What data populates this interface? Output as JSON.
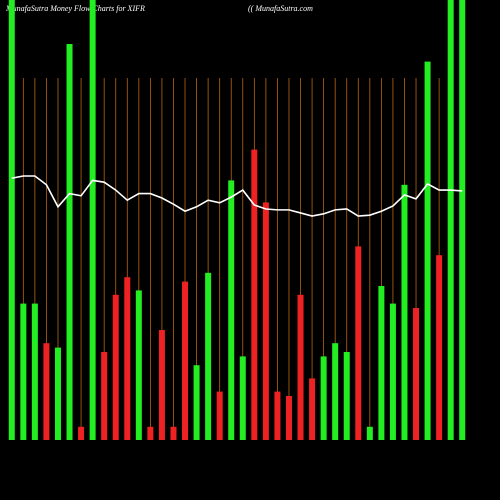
{
  "chart_data": {
    "type": "bar",
    "title": "MunafaSutra  Money Flow  Charts for XIFR",
    "subtitle": "(( MunafaSutra.com",
    "categories": [
      null,
      null,
      null,
      null,
      null,
      null,
      null,
      null,
      null,
      null,
      null,
      null,
      null,
      null,
      null,
      null,
      null,
      null,
      null,
      null,
      null,
      null,
      null,
      null,
      null,
      null,
      null,
      null,
      null,
      null,
      null,
      null,
      null,
      null,
      null,
      null,
      null,
      null,
      null,
      null
    ],
    "values": [
      100,
      31,
      31,
      22,
      21,
      90,
      3,
      100,
      20,
      33,
      37,
      34,
      3,
      25,
      3,
      36,
      17,
      38,
      11,
      59,
      19,
      66,
      54,
      11,
      10,
      33,
      14,
      19,
      22,
      20,
      44,
      3,
      35,
      31,
      58,
      30,
      86,
      42,
      100,
      100
    ],
    "colors": [
      "#22ee22",
      "#22ee22",
      "#22ee22",
      "#ee2222",
      "#22ee22",
      "#22ee22",
      "#ee2222",
      "#22ee22",
      "#ee2222",
      "#ee2222",
      "#ee2222",
      "#22ee22",
      "#ee2222",
      "#ee2222",
      "#ee2222",
      "#ee2222",
      "#22ee22",
      "#22ee22",
      "#ee2222",
      "#22ee22",
      "#22ee22",
      "#ee2222",
      "#ee2222",
      "#ee2222",
      "#ee2222",
      "#ee2222",
      "#ee2222",
      "#22ee22",
      "#22ee22",
      "#22ee22",
      "#ee2222",
      "#22ee22",
      "#22ee22",
      "#22ee22",
      "#22ee22",
      "#ee2222",
      "#22ee22",
      "#ee2222",
      "#22ee22",
      "#22ee22"
    ],
    "line_values": [
      59.5,
      60,
      60,
      58,
      53,
      56,
      55.5,
      59,
      58.6,
      56.8,
      54.5,
      56,
      56,
      55,
      53.6,
      52,
      53,
      54.5,
      53.9,
      55.2,
      56.8,
      53.4,
      52.5,
      52.3,
      52.3,
      51.6,
      50.9,
      51.4,
      52.3,
      52.5,
      50.9,
      51.1,
      52,
      53.2,
      55.7,
      54.8,
      58.2,
      56.8,
      56.8,
      56.6
    ],
    "line_color": "#ffffff",
    "ylim": [
      0,
      100
    ],
    "grid_color": "#b8650f"
  }
}
